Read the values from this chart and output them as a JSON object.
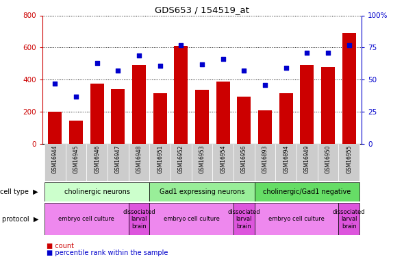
{
  "title": "GDS653 / 154519_at",
  "samples": [
    "GSM16944",
    "GSM16945",
    "GSM16946",
    "GSM16947",
    "GSM16948",
    "GSM16951",
    "GSM16952",
    "GSM16953",
    "GSM16954",
    "GSM16956",
    "GSM16893",
    "GSM16894",
    "GSM16949",
    "GSM16950",
    "GSM16955"
  ],
  "counts": [
    200,
    145,
    375,
    340,
    490,
    315,
    610,
    335,
    390,
    295,
    210,
    315,
    490,
    480,
    690
  ],
  "percentile": [
    47,
    37,
    63,
    57,
    69,
    61,
    77,
    62,
    66,
    57,
    46,
    59,
    71,
    71,
    77
  ],
  "bar_color": "#cc0000",
  "dot_color": "#0000cc",
  "ylim_left": [
    0,
    800
  ],
  "ylim_right": [
    0,
    100
  ],
  "yticks_left": [
    0,
    200,
    400,
    600,
    800
  ],
  "yticks_right": [
    0,
    25,
    50,
    75,
    100
  ],
  "yticklabels_right": [
    "0",
    "25",
    "50",
    "75",
    "100%"
  ],
  "cell_type_groups": [
    {
      "label": "cholinergic neurons",
      "start": 0,
      "end": 5,
      "color": "#ccffcc"
    },
    {
      "label": "Gad1 expressing neurons",
      "start": 5,
      "end": 10,
      "color": "#99ee99"
    },
    {
      "label": "cholinergic/Gad1 negative",
      "start": 10,
      "end": 15,
      "color": "#66dd66"
    }
  ],
  "protocol_groups": [
    {
      "label": "embryo cell culture",
      "start": 0,
      "end": 4,
      "color": "#ee88ee"
    },
    {
      "label": "dissociated\nlarval\nbrain",
      "start": 4,
      "end": 5,
      "color": "#dd55dd"
    },
    {
      "label": "embryo cell culture",
      "start": 5,
      "end": 9,
      "color": "#ee88ee"
    },
    {
      "label": "dissociated\nlarval\nbrain",
      "start": 9,
      "end": 10,
      "color": "#dd55dd"
    },
    {
      "label": "embryo cell culture",
      "start": 10,
      "end": 14,
      "color": "#ee88ee"
    },
    {
      "label": "dissociated\nlarval\nbrain",
      "start": 14,
      "end": 15,
      "color": "#dd55dd"
    }
  ],
  "legend_count_label": "count",
  "legend_pct_label": "percentile rank within the sample",
  "cell_type_label": "cell type",
  "protocol_label": "protocol",
  "bg_color": "#ffffff",
  "grid_color": "#000000",
  "tick_label_color_left": "#cc0000",
  "tick_label_color_right": "#0000cc",
  "xtick_bg_color": "#cccccc",
  "n_samples": 15
}
